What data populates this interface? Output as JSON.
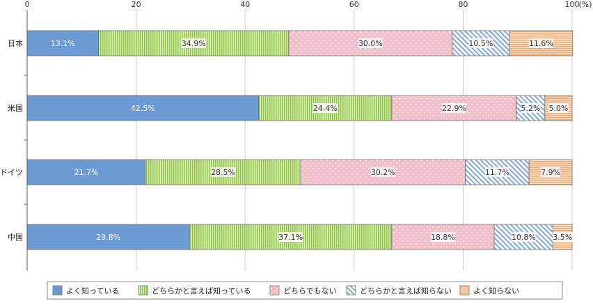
{
  "chart_data": {
    "type": "bar",
    "orientation": "horizontal",
    "stacked": true,
    "categories": [
      "日本",
      "米国",
      "ドイツ",
      "中国"
    ],
    "x_ticks": [
      "0",
      "20",
      "40",
      "60",
      "80",
      "100"
    ],
    "unit_label": "(%)",
    "xlim": [
      0,
      100
    ],
    "grid": true,
    "legend_position": "bottom",
    "series": [
      {
        "name": "よく知っている",
        "values": [
          13.1,
          42.5,
          21.7,
          29.8
        ],
        "labels": [
          "13.1%",
          "42.5%",
          "21.7%",
          "29.8%"
        ],
        "color": "#6b9bd2",
        "pattern": "solid"
      },
      {
        "name": "どちらかと言えば知っている",
        "values": [
          34.9,
          24.4,
          28.5,
          37.1
        ],
        "labels": [
          "34.9%",
          "24.4%",
          "28.5%",
          "37.1%"
        ],
        "color": "#b9db7a",
        "pattern": "vertical-stripes"
      },
      {
        "name": "どちらでもない",
        "values": [
          30.0,
          22.9,
          30.2,
          18.8
        ],
        "labels": [
          "30.0%",
          "22.9%",
          "30.2%",
          "18.8%"
        ],
        "color": "#f8bcc7",
        "pattern": "dots"
      },
      {
        "name": "どちらかと言えば知らない",
        "values": [
          10.5,
          5.2,
          11.7,
          10.8
        ],
        "labels": [
          "10.5%",
          "5.2%",
          "11.7%",
          "10.8%"
        ],
        "color": "#a9c4e8",
        "pattern": "diagonal-stripes"
      },
      {
        "name": "よく知らない",
        "values": [
          11.6,
          5.0,
          7.9,
          3.5
        ],
        "labels": [
          "11.6%",
          "5.0%",
          "7.9%",
          "3.5%"
        ],
        "color": "#f8c39a",
        "pattern": "horizontal-stripes"
      }
    ]
  }
}
